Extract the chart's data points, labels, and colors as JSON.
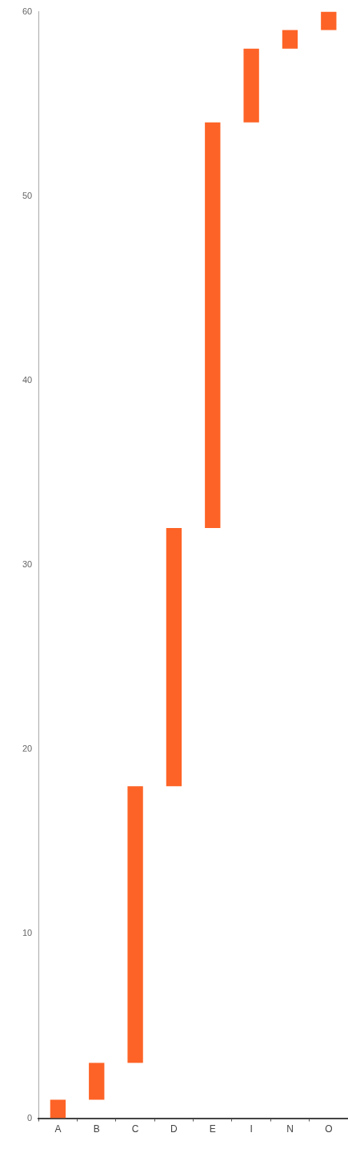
{
  "chart_data": {
    "type": "bar",
    "categories": [
      "A",
      "B",
      "C",
      "D",
      "E",
      "I",
      "N",
      "O"
    ],
    "values": [
      1,
      2,
      15,
      14,
      22,
      4,
      1,
      1
    ],
    "base": [
      0,
      1,
      3,
      18,
      32,
      54,
      58,
      59
    ],
    "color": "#fd6326",
    "ylim": [
      0,
      60
    ],
    "yticks": [
      0,
      10,
      20,
      30,
      40,
      50,
      60
    ],
    "grid": false,
    "legend": false
  }
}
